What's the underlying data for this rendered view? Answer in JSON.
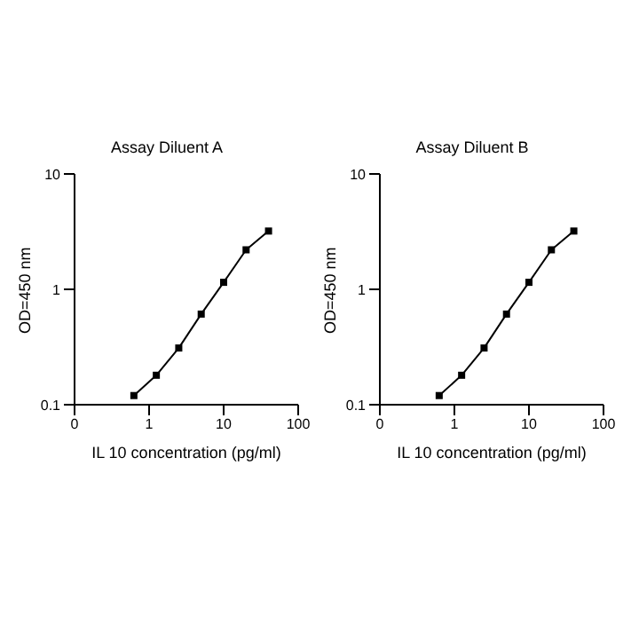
{
  "chart_data": [
    {
      "type": "line",
      "title": "Assay Diluent A",
      "xlabel": "IL 10 concentration (pg/ml)",
      "ylabel": "OD=450 nm",
      "log": "xy",
      "x": [
        0.625,
        1.25,
        2.5,
        5,
        10,
        20,
        40
      ],
      "series": [
        {
          "color": "#000000",
          "values": [
            0.12,
            0.18,
            0.31,
            0.61,
            1.15,
            2.2,
            3.2
          ]
        }
      ],
      "xlim": [
        0.1,
        100
      ],
      "xticks": [
        {
          "value": 0.1,
          "label": "0"
        },
        1,
        10,
        100
      ],
      "ylim": [
        0.1,
        10
      ],
      "yticks": [
        0.1,
        1,
        10
      ],
      "marker": "square",
      "grid": false,
      "legend": false
    },
    {
      "type": "line",
      "title": "Assay Diluent B",
      "xlabel": "IL 10 concentration (pg/ml)",
      "ylabel": "OD=450 nm",
      "log": "xy",
      "x": [
        0.625,
        1.25,
        2.5,
        5,
        10,
        20,
        40
      ],
      "series": [
        {
          "color": "#000000",
          "values": [
            0.12,
            0.18,
            0.31,
            0.61,
            1.15,
            2.2,
            3.2
          ]
        }
      ],
      "xlim": [
        0.1,
        100
      ],
      "xticks": [
        {
          "value": 0.1,
          "label": "0"
        },
        1,
        10,
        100
      ],
      "ylim": [
        0.1,
        10
      ],
      "yticks": [
        0.1,
        1,
        10
      ],
      "marker": "square",
      "grid": false,
      "legend": false
    }
  ]
}
